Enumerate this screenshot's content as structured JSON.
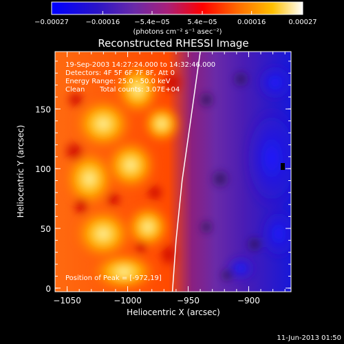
{
  "chart_data": {
    "type": "heatmap",
    "title": "Reconstructed RHESSI Image",
    "xlabel": "Heliocentric X (arcsec)",
    "ylabel": "Heliocentric Y (arcsec)",
    "xlim": [
      -1060,
      -865
    ],
    "ylim": [
      -3,
      198
    ],
    "x_ticks": [
      -1050,
      -1000,
      -950,
      -900
    ],
    "y_ticks": [
      0,
      50,
      100,
      150
    ],
    "x_tick_labels": [
      "−1050",
      "−1000",
      "−950",
      "−900"
    ],
    "y_tick_labels": [
      "0",
      "50",
      "100",
      "150"
    ],
    "colorbar": {
      "range": [
        -0.00027,
        0.00027
      ],
      "tick_values": [
        -0.00027,
        -0.00016,
        -5.4e-05,
        5.4e-05,
        0.00016,
        0.00027
      ],
      "tick_labels": [
        "−0.00027",
        "−0.00016",
        "−5.4e−05",
        "5.4e−05",
        "0.00016",
        "0.00027"
      ],
      "units_label": "(photons cm⁻² s⁻¹ asec⁻²)",
      "colors": [
        "#0000ff",
        "#2a14c8",
        "#6a2aa8",
        "#a8207a",
        "#ff0000",
        "#ff6a00",
        "#ffc000",
        "#ffffff"
      ]
    },
    "annotations": {
      "time_range": "19-Sep-2003 14:27:24.000 to 14:32:46.000",
      "detectors": "Detectors: 4F 5F 6F 7F 8F, Att 0",
      "energy_range": "Energy Range: 25.0 - 50.0 keV",
      "method": "Clean",
      "total_counts": "Total counts: 3.07E+04",
      "peak_position": "Position of Peak = [-972,19]"
    },
    "limb_line": [
      {
        "x": -963,
        "y": -3
      },
      {
        "x": -960,
        "y": 40
      },
      {
        "x": -955,
        "y": 90
      },
      {
        "x": -948,
        "y": 140
      },
      {
        "x": -940,
        "y": 198
      }
    ]
  },
  "footer": {
    "timestamp": "11-Jun-2013 01:50"
  }
}
